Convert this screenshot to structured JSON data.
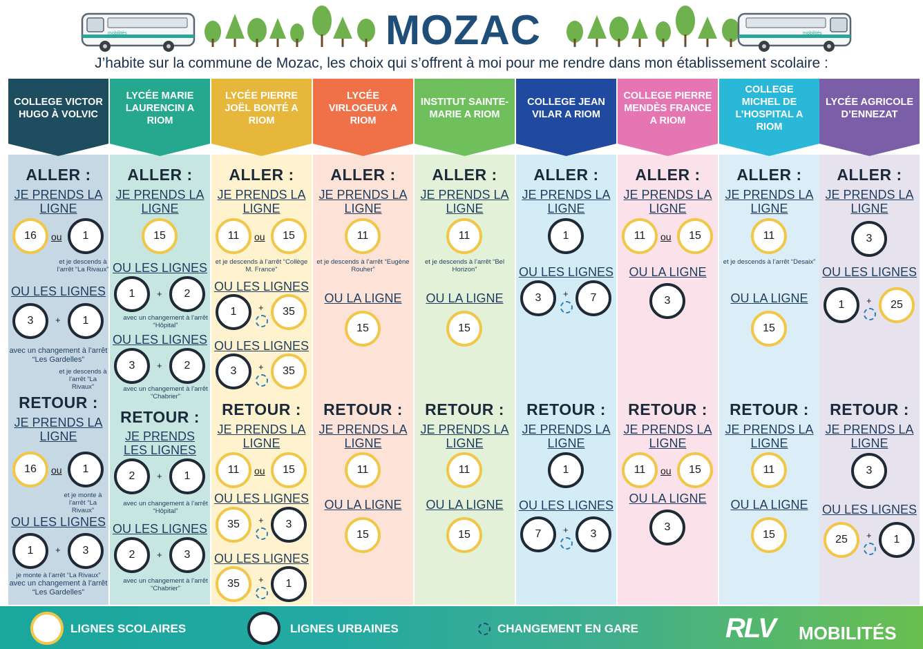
{
  "header": {
    "title": "MOZAC",
    "subtitle": "J’habite sur la commune de Mozac, les choix qui s’offrent à moi pour me rendre dans mon établissement scolaire :",
    "bus_logo_text": "mobilités"
  },
  "words": {
    "aller": "ALLER :",
    "retour": "RETOUR :",
    "or": "ou",
    "plus": "+"
  },
  "columns": [
    {
      "title": "COLLEGE VICTOR HUGO À VOLVIC",
      "color": "#1d4d5e",
      "bg": "#c6d8e4"
    },
    {
      "title": "LYCÉE MARIE LAURENCIN A RIOM",
      "color": "#26a88f",
      "bg": "#c7e6e2"
    },
    {
      "title": "LYCÉE PIERRE JOËL BONTÉ A RIOM",
      "color": "#e6b73a",
      "bg": "#fff3cf"
    },
    {
      "title": "LYCÉE VIRLOGEUX A RIOM",
      "color": "#f07048",
      "bg": "#fde3d7"
    },
    {
      "title": "INSTITUT SAINTE-MARIE A RIOM",
      "color": "#6fc05c",
      "bg": "#e2f1d8"
    },
    {
      "title": "COLLEGE JEAN VILAR A RIOM",
      "color": "#1f4aa0",
      "bg": "#d3ecf6"
    },
    {
      "title": "COLLEGE PIERRE MENDÈS FRANCE A RIOM",
      "color": "#e675b4",
      "bg": "#fbe1ea"
    },
    {
      "title": "COLLEGE MICHEL DE L’HOSPITAL A RIOM",
      "color": "#2ab8d8",
      "bg": "#dbeef7"
    },
    {
      "title": "LYCÉE AGRICOLE D’ENNEZAT",
      "color": "#7b5ea8",
      "bg": "#e6e3ef"
    }
  ],
  "c0": {
    "a1": "JE PRENDS LA LIGNE",
    "l1": "16",
    "l2": "1",
    "n1": "et je descends à l’arrêt “La Rivaux”",
    "a2": "OU LES LIGNES",
    "l3": "3",
    "l4": "1",
    "n2": "avec un changement à l’arrêt “Les Gardelles”",
    "n3": "et je descends à l’arrêt “La Rivaux”",
    "r1": "JE PRENDS LA LIGNE",
    "l5": "16",
    "l6": "1",
    "n4": "et je monte à l’arrêt “La Rivaux”",
    "r2": "OU LES LIGNES",
    "l7": "1",
    "l8": "3",
    "n5": "je monte à l’arrêt “La Rivaux”",
    "n6": "avec un changement à l’arrêt “Les Gardelles”"
  },
  "c1": {
    "a1": "JE PRENDS LA LIGNE",
    "l1": "15",
    "a2": "OU LES LIGNES",
    "l2": "1",
    "l3": "2",
    "n1": "avec un changement à l’arrêt “Hôpital”",
    "a3": "OU LES LIGNES",
    "l4": "3",
    "l5": "2",
    "n2": "avec un changement à l’arrêt “Chabrier”",
    "r1": "JE PRENDS LES LIGNES",
    "l6": "2",
    "l7": "1",
    "n3": "avec un changement à l’arrêt “Hôpital”",
    "r2": "OU LES LIGNES",
    "l8": "2",
    "l9": "3",
    "n4": "avec un changement à l’arrêt “Chabrier”"
  },
  "c2": {
    "a1": "JE PRENDS LA LIGNE",
    "l1": "11",
    "l2": "15",
    "n1": "et je descends à l’arrêt “Collège M. France”",
    "a2": "OU LES LIGNES",
    "l3": "1",
    "l4": "35",
    "a3": "OU LES LIGNES",
    "l5": "3",
    "l6": "35",
    "r1": "JE PRENDS LA LIGNE",
    "l7": "11",
    "l8": "15",
    "r2": "OU LES LIGNES",
    "l9": "35",
    "l10": "3",
    "r3": "OU LES LIGNES",
    "l11": "35",
    "l12": "1"
  },
  "c3": {
    "a1": "JE PRENDS LA LIGNE",
    "l1": "11",
    "n1": "et je descends à l’arrêt “Eugène Rouher”",
    "a2": "OU LA LIGNE",
    "l2": "15",
    "r1": "JE PRENDS LA LIGNE",
    "l3": "11",
    "r2": "OU LA LIGNE",
    "l4": "15"
  },
  "c4": {
    "a1": "JE PRENDS LA LIGNE",
    "l1": "11",
    "n1": "et je descends à l’arrêt “Bel Horizon”",
    "a2": "OU LA LIGNE",
    "l2": "15",
    "r1": "JE PRENDS LA LIGNE",
    "l3": "11",
    "r2": "OU LA LIGNE",
    "l4": "15"
  },
  "c5": {
    "a1": "JE PRENDS LA LIGNE",
    "l1": "1",
    "a2": "OU LES LIGNES",
    "l2": "3",
    "l3": "7",
    "r1": "JE PRENDS LA LIGNE",
    "l4": "1",
    "r2": "OU LES LIGNES",
    "l5": "7",
    "l6": "3"
  },
  "c6": {
    "a1": "JE PRENDS LA LIGNE",
    "l1": "11",
    "l2": "15",
    "a2": "OU LA LIGNE",
    "l3": "3",
    "r1": "JE PRENDS LA LIGNE",
    "l4": "11",
    "l5": "15",
    "r2": "OU LA LIGNE",
    "l6": "3"
  },
  "c7": {
    "a1": "JE PRENDS LA LIGNE",
    "l1": "11",
    "n1": "et je descends à l’arrêt “Desaix”",
    "a2": "OU LA LIGNE",
    "l2": "15",
    "r1": "JE PRENDS LA LIGNE",
    "l3": "11",
    "r2": "OU LA LIGNE",
    "l4": "15"
  },
  "c8": {
    "a1": "JE PRENDS LA LIGNE",
    "l1": "3",
    "a2": "OU LES LIGNES",
    "l2": "1",
    "l3": "25",
    "r1": "JE PRENDS LA LIGNE",
    "l4": "3",
    "r2": "OU LES LIGNES",
    "l5": "25",
    "l6": "1"
  },
  "legend": {
    "school": "LIGNES SCOLAIRES",
    "urban": "LIGNES URBAINES",
    "change": "CHANGEMENT EN GARE",
    "logo_main": "RLV",
    "logo_sub": "MOBILITÉS",
    "school_color": "#f1c74a",
    "urban_color": "#1f2a36"
  }
}
